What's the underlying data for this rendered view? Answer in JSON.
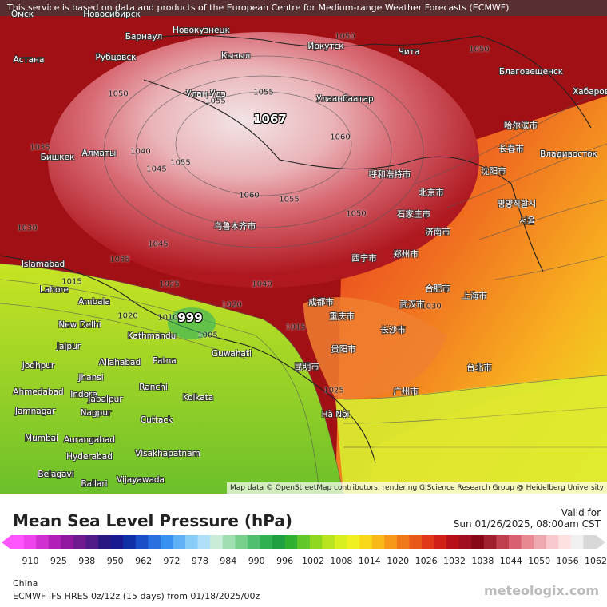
{
  "banner": "This service is based on data and products of the European Centre for Medium-range Weather Forecasts (ECMWF)",
  "map_credit": "Map data © OpenStreetMap contributors, rendering GIScience Research Group @ Heidelberg University",
  "extremes": {
    "high": "1067",
    "low": "999"
  },
  "cities": [
    {
      "name": "Омск"
    },
    {
      "name": "Новосибирск"
    },
    {
      "name": "Барнаул"
    },
    {
      "name": "Новокузнецк"
    },
    {
      "name": "Иркутск"
    },
    {
      "name": "Чита"
    },
    {
      "name": "Астана"
    },
    {
      "name": "Рубцовск"
    },
    {
      "name": "Кызыл"
    },
    {
      "name": "Улан-Удэ"
    },
    {
      "name": "Благовещенск"
    },
    {
      "name": "Хабаров"
    },
    {
      "name": "Улаанбаатар"
    },
    {
      "name": "哈尔滨市"
    },
    {
      "name": "长春市"
    },
    {
      "name": "Владивосток"
    },
    {
      "name": "Бишкек"
    },
    {
      "name": "Алматы"
    },
    {
      "name": "沈阳市"
    },
    {
      "name": "呼和浩特市"
    },
    {
      "name": "北京市"
    },
    {
      "name": "평양직할시"
    },
    {
      "name": "서울"
    },
    {
      "name": "石家庄市"
    },
    {
      "name": "济南市"
    },
    {
      "name": "乌鲁木齐市"
    },
    {
      "name": "西宁市"
    },
    {
      "name": "郑州市"
    },
    {
      "name": "Islamabad"
    },
    {
      "name": "Lahore"
    },
    {
      "name": "Ambala"
    },
    {
      "name": "上海市"
    },
    {
      "name": "合肥市"
    },
    {
      "name": "武汉市"
    },
    {
      "name": "成都市"
    },
    {
      "name": "重庆市"
    },
    {
      "name": "New Delhi"
    },
    {
      "name": "Kathmandu"
    },
    {
      "name": "长沙市"
    },
    {
      "name": "贵阳市"
    },
    {
      "name": "昆明市"
    },
    {
      "name": "Jaipur"
    },
    {
      "name": "Jodhpur"
    },
    {
      "name": "Allahabad"
    },
    {
      "name": "Patna"
    },
    {
      "name": "Guwahati"
    },
    {
      "name": "Jhansi"
    },
    {
      "name": "Ahmedabad"
    },
    {
      "name": "Indore"
    },
    {
      "name": "Ranchi"
    },
    {
      "name": "Kolkata"
    },
    {
      "name": "Jabalpur"
    },
    {
      "name": "广州市"
    },
    {
      "name": "台北市"
    },
    {
      "name": "Jamnagar"
    },
    {
      "name": "Nagpur"
    },
    {
      "name": "Cuttack"
    },
    {
      "name": "Hà Nội"
    },
    {
      "name": "Mumbai"
    },
    {
      "name": "Aurangabad"
    },
    {
      "name": "Hyderabad"
    },
    {
      "name": "Visakhapatnam"
    },
    {
      "name": "Belagavi"
    },
    {
      "name": "Ballari"
    },
    {
      "name": "Vijayawada"
    }
  ],
  "pressure_labels": [
    "1050",
    "1055",
    "1060",
    "1045",
    "1040",
    "1035",
    "1030",
    "1025",
    "1020",
    "1015",
    "1010",
    "1005"
  ],
  "legend": {
    "title": "Mean Sea Level Pressure (hPa)",
    "valid_label": "Valid for",
    "valid_time": "Sun 01/26/2025, 08:00am CST",
    "ticks": [
      "910",
      "925",
      "938",
      "950",
      "962",
      "972",
      "978",
      "984",
      "990",
      "996",
      "1002",
      "1008",
      "1014",
      "1020",
      "1026",
      "1032",
      "1038",
      "1044",
      "1050",
      "1056",
      "1062"
    ],
    "colors": [
      "#ff55ff",
      "#ee44ee",
      "#d030d0",
      "#b020b8",
      "#9018a0",
      "#701a90",
      "#501a88",
      "#2a1880",
      "#1a1a90",
      "#1030a8",
      "#1a4fc8",
      "#2a70e0",
      "#3a90f0",
      "#60b0f5",
      "#88ccf8",
      "#b0e0f8",
      "#c8ecd8",
      "#a0e0b0",
      "#78d08c",
      "#50c070",
      "#30b050",
      "#20a040",
      "#30b030",
      "#60c828",
      "#90d820",
      "#b8e420",
      "#d8f020",
      "#f0f020",
      "#f8d818",
      "#f8b818",
      "#f89818",
      "#f07818",
      "#e85818",
      "#e03818",
      "#d02018",
      "#b81018",
      "#a01020",
      "#880818",
      "#a02030",
      "#c04050",
      "#d86070",
      "#e88890",
      "#f0a8b0",
      "#f8c8cc",
      "#fde0e0",
      "#f0f0f0",
      "#d8d8d8"
    ],
    "region": "China",
    "model": "ECMWF IFS HRES 0z/12z (15 days) from  01/18/2025/00z",
    "brand": "meteologix.com"
  }
}
